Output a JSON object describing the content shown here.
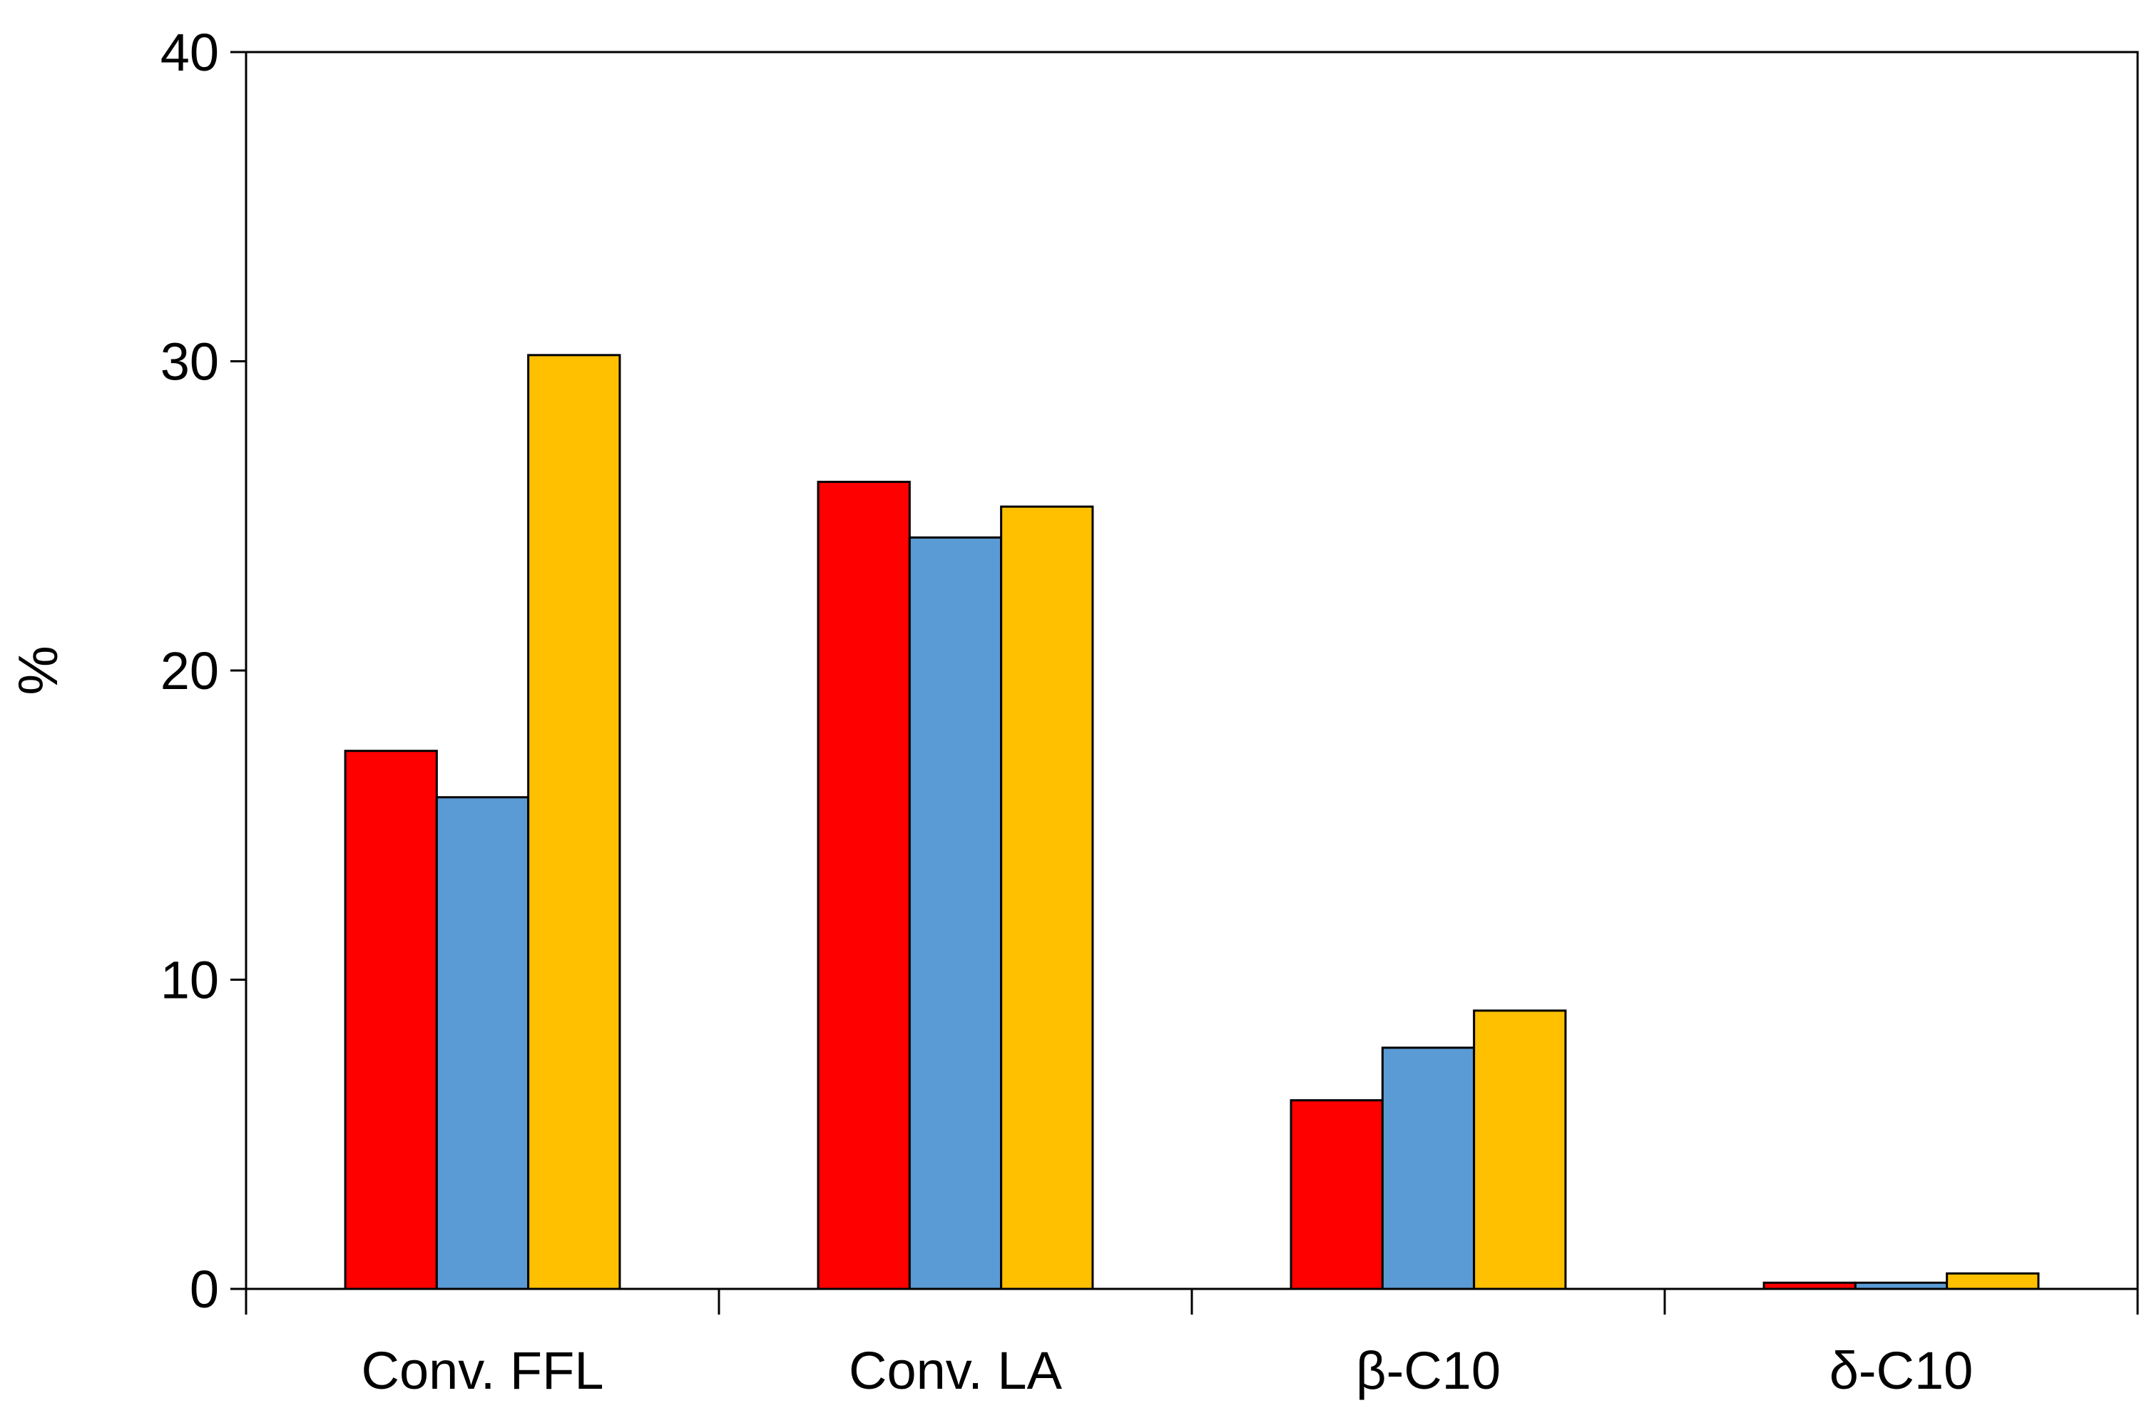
{
  "chart_data": {
    "type": "bar",
    "title": "",
    "xlabel": "",
    "ylabel": "%",
    "ylim": [
      0,
      40
    ],
    "yticks": [
      0,
      10,
      20,
      30,
      40
    ],
    "grid": false,
    "legend": "none",
    "categories": [
      "Conv. FFL",
      "Conv. LA",
      "β-C10",
      "δ-C10"
    ],
    "series": [
      {
        "name": "series-red",
        "color": "#FF0000",
        "values": [
          17.4,
          26.1,
          6.1,
          0.2
        ]
      },
      {
        "name": "series-blue",
        "color": "#5B9BD5",
        "values": [
          15.9,
          24.3,
          7.8,
          0.2
        ]
      },
      {
        "name": "series-yellow",
        "color": "#FFC000",
        "values": [
          30.2,
          25.3,
          9.0,
          0.5
        ]
      }
    ]
  }
}
